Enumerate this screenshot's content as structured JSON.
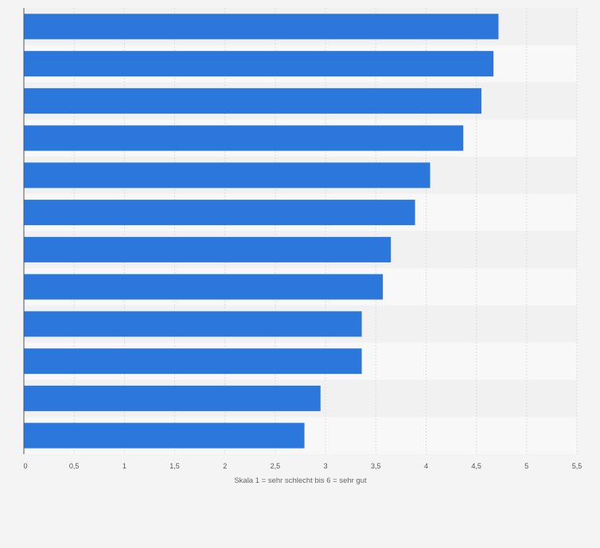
{
  "chart_data": {
    "type": "bar",
    "orientation": "horizontal",
    "title": "",
    "xlabel": "Skala 1 = sehr schlecht bis 6 = sehr gut",
    "ylabel": "",
    "categories": [
      "",
      "",
      "",
      "",
      "",
      "",
      "",
      "",
      "",
      "",
      "",
      ""
    ],
    "values": [
      4.72,
      4.67,
      4.55,
      4.37,
      4.04,
      3.89,
      3.65,
      3.57,
      3.36,
      3.36,
      2.95,
      2.79
    ],
    "xlim": [
      0,
      5.5
    ],
    "ticks": [
      0,
      0.5,
      1,
      1.5,
      2,
      2.5,
      3,
      3.5,
      4,
      4.5,
      5,
      5.5
    ],
    "tick_labels": [
      "0",
      "0,5",
      "1",
      "1,5",
      "2",
      "2,5",
      "3",
      "3,5",
      "4",
      "4,5",
      "5",
      "5,5"
    ],
    "grid": true,
    "colors": {
      "bar": "#2b77dc",
      "background": "#f4f4f4",
      "band_dark": "#f1f1f1",
      "band_light": "#f8f8f8",
      "grid": "#dddddd",
      "axis": "#555555"
    }
  }
}
